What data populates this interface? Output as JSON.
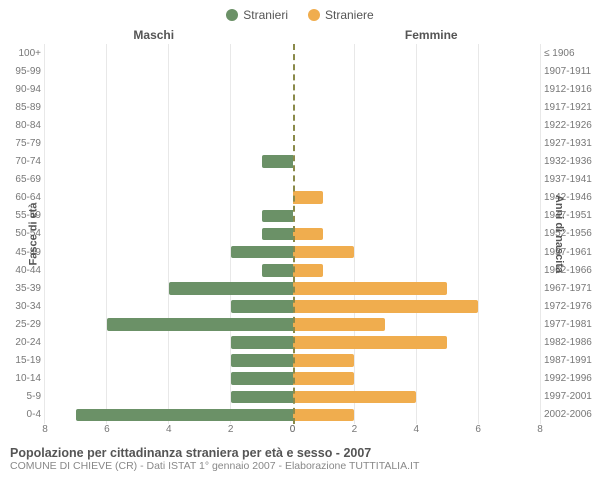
{
  "chart": {
    "type": "population-pyramid",
    "legend": {
      "male_label": "Stranieri",
      "female_label": "Straniere",
      "male_color": "#6b9167",
      "female_color": "#f0ad4e"
    },
    "header": {
      "left": "Maschi",
      "right": "Femmine"
    },
    "yaxis_left_title": "Fasce di età",
    "yaxis_right_title": "Anni di nascita",
    "xlim": 8,
    "xticks": [
      0,
      2,
      4,
      6,
      8
    ],
    "age_labels": [
      "100+",
      "95-99",
      "90-94",
      "85-89",
      "80-84",
      "75-79",
      "70-74",
      "65-69",
      "60-64",
      "55-59",
      "50-54",
      "45-49",
      "40-44",
      "35-39",
      "30-34",
      "25-29",
      "20-24",
      "15-19",
      "10-14",
      "5-9",
      "0-4"
    ],
    "birth_labels": [
      "≤ 1906",
      "1907-1911",
      "1912-1916",
      "1917-1921",
      "1922-1926",
      "1927-1931",
      "1932-1936",
      "1937-1941",
      "1942-1946",
      "1947-1951",
      "1952-1956",
      "1957-1961",
      "1962-1966",
      "1967-1971",
      "1972-1976",
      "1977-1981",
      "1982-1986",
      "1987-1991",
      "1992-1996",
      "1997-2001",
      "2002-2006"
    ],
    "male": [
      0,
      0,
      0,
      0,
      0,
      0,
      1,
      0,
      0,
      1,
      1,
      2,
      1,
      4,
      2,
      6,
      2,
      2,
      2,
      2,
      7
    ],
    "female": [
      0,
      0,
      0,
      0,
      0,
      0,
      0,
      0,
      1,
      0,
      1,
      2,
      1,
      5,
      6,
      3,
      5,
      2,
      2,
      4,
      2
    ],
    "bar_colors": {
      "male": "#6b9167",
      "female": "#f0ad4e"
    },
    "grid_color": "#e8e8e8",
    "center_line_color": "#8a8a4a",
    "background_color": "#ffffff",
    "label_fontsize": 10,
    "axis_title_fontsize": 11
  },
  "footer": {
    "title": "Popolazione per cittadinanza straniera per età e sesso - 2007",
    "subtitle": "COMUNE DI CHIEVE (CR) - Dati ISTAT 1° gennaio 2007 - Elaborazione TUTTITALIA.IT"
  }
}
